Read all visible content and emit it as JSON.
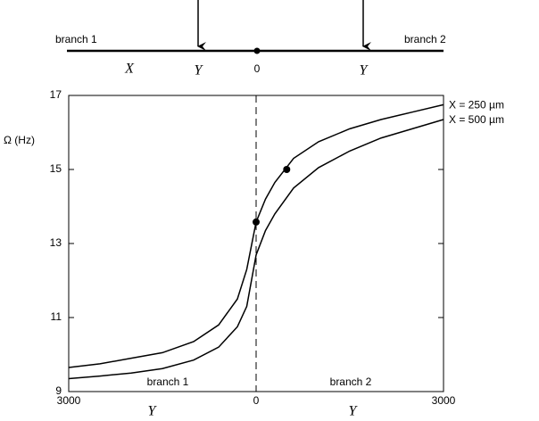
{
  "diagram": {
    "left_label": "branch 1",
    "right_label": "branch 2",
    "labels": [
      "X",
      "Y",
      "0",
      "Y"
    ]
  },
  "chart_data": {
    "type": "line",
    "ylabel": "Ω (Hz)",
    "xlabels": [
      "Y",
      "Y"
    ],
    "annotations": [
      "branch 1",
      "branch 2"
    ],
    "x": [
      -3000,
      -2500,
      -2000,
      -1500,
      -1000,
      -600,
      -300,
      -150,
      0,
      150,
      300,
      600,
      1000,
      1500,
      2000,
      2500,
      3000
    ],
    "series": [
      {
        "name": "X = 250 µm",
        "color": "#000000",
        "values": [
          9.65,
          9.75,
          9.9,
          10.05,
          10.35,
          10.8,
          11.5,
          12.3,
          13.58,
          14.2,
          14.65,
          15.3,
          15.75,
          16.1,
          16.35,
          16.55,
          16.75
        ]
      },
      {
        "name": "X = 500 µm",
        "color": "#000000",
        "values": [
          9.35,
          9.42,
          9.5,
          9.62,
          9.85,
          10.2,
          10.75,
          11.3,
          12.69,
          13.35,
          13.8,
          14.5,
          15.05,
          15.5,
          15.85,
          16.1,
          16.35
        ]
      }
    ],
    "points": {
      "x": [
        0,
        490
      ],
      "y": [
        13.58,
        15.0
      ]
    },
    "xlim": [
      -3000,
      3000
    ],
    "xticks": [
      {
        "value": -3000,
        "label": "3000"
      },
      0,
      3000
    ],
    "ylim": [
      9,
      17
    ],
    "yticks": [
      9,
      11,
      13,
      15,
      17
    ],
    "zero_line": true
  }
}
